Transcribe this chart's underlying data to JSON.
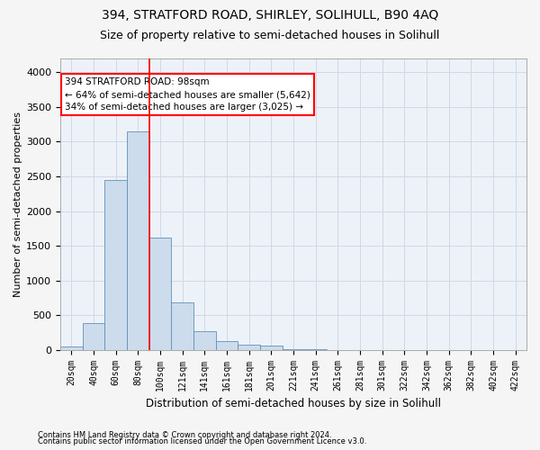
{
  "title": "394, STRATFORD ROAD, SHIRLEY, SOLIHULL, B90 4AQ",
  "subtitle": "Size of property relative to semi-detached houses in Solihull",
  "xlabel": "Distribution of semi-detached houses by size in Solihull",
  "ylabel": "Number of semi-detached properties",
  "footnote1": "Contains HM Land Registry data © Crown copyright and database right 2024.",
  "footnote2": "Contains public sector information licensed under the Open Government Licence v3.0.",
  "categories": [
    "20sqm",
    "40sqm",
    "60sqm",
    "80sqm",
    "100sqm",
    "121sqm",
    "141sqm",
    "161sqm",
    "181sqm",
    "201sqm",
    "221sqm",
    "241sqm",
    "261sqm",
    "281sqm",
    "301sqm",
    "322sqm",
    "342sqm",
    "362sqm",
    "382sqm",
    "402sqm",
    "422sqm"
  ],
  "values": [
    50,
    380,
    2450,
    3150,
    1620,
    680,
    270,
    120,
    70,
    60,
    10,
    5,
    0,
    0,
    0,
    0,
    0,
    0,
    0,
    0,
    0
  ],
  "bar_color": "#ccdcec",
  "bar_edge_color": "#6090b8",
  "red_line_x": 3.5,
  "ann_line1": "394 STRATFORD ROAD: 98sqm",
  "ann_line2": "← 64% of semi-detached houses are smaller (5,642)",
  "ann_line3": "34% of semi-detached houses are larger (3,025) →",
  "ylim": [
    0,
    4200
  ],
  "yticks": [
    0,
    500,
    1000,
    1500,
    2000,
    2500,
    3000,
    3500,
    4000
  ],
  "grid_color": "#d0d8e8",
  "background_color": "#edf2f8",
  "title_fontsize": 10,
  "subtitle_fontsize": 9,
  "tick_fontsize": 7,
  "ylabel_fontsize": 8,
  "xlabel_fontsize": 8.5,
  "footnote_fontsize": 6,
  "ann_fontsize": 7.5
}
